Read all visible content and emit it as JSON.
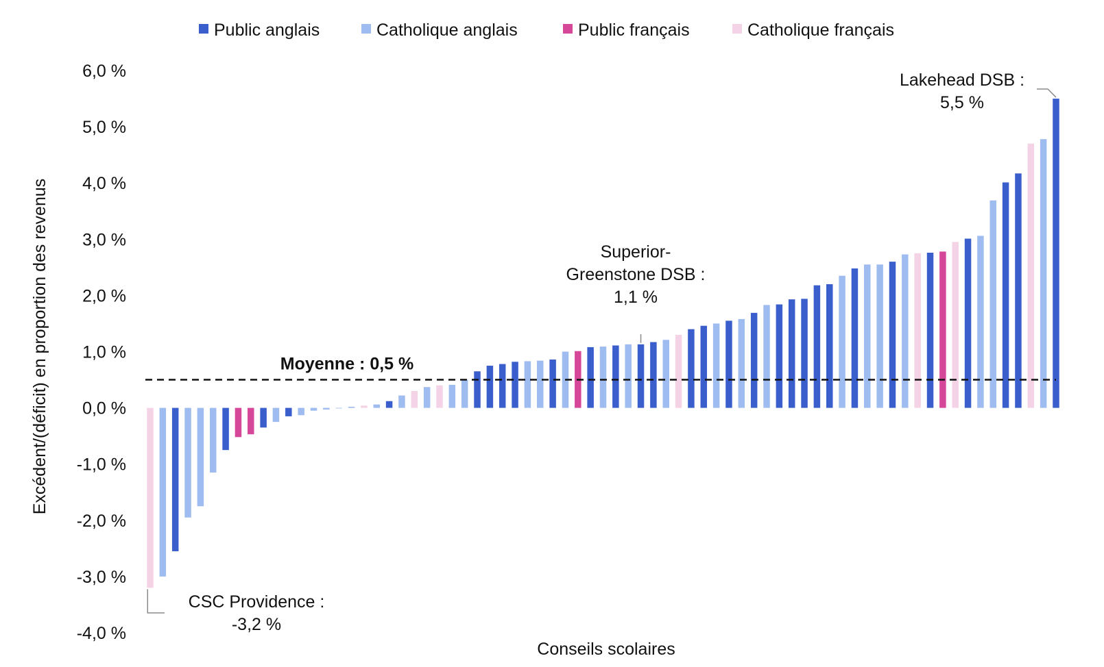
{
  "chart_data": {
    "type": "bar",
    "xlabel": "Conseils scolaires",
    "ylabel": "Excédent/(déficit) en proportion des revenus",
    "ylim": [
      -4.0,
      6.0
    ],
    "yticks": [
      6.0,
      5.0,
      4.0,
      3.0,
      2.0,
      1.0,
      0.0,
      -1.0,
      -2.0,
      -3.0,
      -4.0
    ],
    "ytick_labels": [
      "6,0 %",
      "5,0 %",
      "4,0 %",
      "3,0 %",
      "2,0 %",
      "1,0 %",
      "0,0 %",
      "-1,0 %",
      "-2,0 %",
      "-3,0 %",
      "-4,0 %"
    ],
    "grid": false,
    "legend_position": "top",
    "legend": [
      {
        "key": "PA",
        "label": "Public anglais",
        "color": "#3a5fcd"
      },
      {
        "key": "CA",
        "label": "Catholique anglais",
        "color": "#9fbcf0"
      },
      {
        "key": "PF",
        "label": "Public français",
        "color": "#d6479a"
      },
      {
        "key": "CF",
        "label": "Catholique français",
        "color": "#f5d3e6"
      }
    ],
    "values": [
      -3.2,
      -3.0,
      -2.55,
      -1.95,
      -1.75,
      -1.15,
      -0.75,
      -0.52,
      -0.47,
      -0.35,
      -0.25,
      -0.15,
      -0.13,
      -0.05,
      -0.03,
      -0.01,
      0.02,
      0.04,
      0.06,
      0.12,
      0.22,
      0.3,
      0.37,
      0.4,
      0.41,
      0.5,
      0.65,
      0.75,
      0.78,
      0.82,
      0.83,
      0.84,
      0.86,
      1.0,
      1.01,
      1.08,
      1.09,
      1.11,
      1.13,
      1.13,
      1.17,
      1.21,
      1.3,
      1.4,
      1.46,
      1.5,
      1.55,
      1.58,
      1.69,
      1.83,
      1.84,
      1.93,
      1.94,
      2.18,
      2.2,
      2.35,
      2.48,
      2.55,
      2.55,
      2.6,
      2.73,
      2.75,
      2.76,
      2.78,
      2.95,
      3.01,
      3.06,
      3.69,
      4.01,
      4.17,
      4.7,
      4.78,
      5.5
    ],
    "categories_type": [
      "CF",
      "CA",
      "PA",
      "CA",
      "CA",
      "CA",
      "PA",
      "PF",
      "PF",
      "PA",
      "CA",
      "PA",
      "CA",
      "CA",
      "CA",
      "CA",
      "CA",
      "CF",
      "CA",
      "PA",
      "CA",
      "CF",
      "CA",
      "CF",
      "CA",
      "CA",
      "PA",
      "PA",
      "PA",
      "PA",
      "CA",
      "CA",
      "PA",
      "CA",
      "PF",
      "PA",
      "CA",
      "PA",
      "CA",
      "PA",
      "PA",
      "CA",
      "CF",
      "PA",
      "PA",
      "CA",
      "PA",
      "CA",
      "PA",
      "CA",
      "PA",
      "PA",
      "PA",
      "PA",
      "PA",
      "CA",
      "PA",
      "CA",
      "CA",
      "PA",
      "CA",
      "CF",
      "PA",
      "PF",
      "CF",
      "PA",
      "CA",
      "CA",
      "PA",
      "PA",
      "CF",
      "CA",
      "PA"
    ],
    "average": {
      "value": 0.5,
      "label": "Moyenne : 0,5 %"
    },
    "annotations": [
      {
        "bar_index": 0,
        "lines": [
          "CSC Providence :",
          "-3,2 %"
        ]
      },
      {
        "bar_index": 39,
        "lines": [
          "Superior-",
          "Greenstone DSB :",
          "1,1 %"
        ]
      },
      {
        "bar_index": 72,
        "lines": [
          "Lakehead DSB :",
          "5,5 %"
        ]
      }
    ]
  }
}
